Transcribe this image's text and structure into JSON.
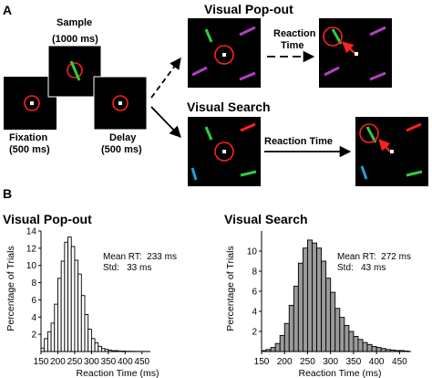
{
  "panel_a": {
    "label": "A",
    "fixation": {
      "title": "Fixation",
      "duration": "(500 ms)"
    },
    "sample": {
      "title": "Sample",
      "duration": "(1000 ms)"
    },
    "delay": {
      "title": "Delay",
      "duration": "(500 ms)"
    },
    "popout": {
      "title": "Visual Pop-out",
      "rt_line1": "Reaction",
      "rt_line2": "Time"
    },
    "search": {
      "title": "Visual Search",
      "rt_label": "Reaction Time"
    }
  },
  "panel_b": {
    "label": "B"
  },
  "colors": {
    "fixation_circle": "#ff2020",
    "target": "#2ecc40",
    "distractor_popout": "#b040c0",
    "distractor_blue": "#1ea0d8",
    "arrow": "#ff2020"
  },
  "chart_data": [
    {
      "type": "bar",
      "title": "Visual Pop-out",
      "xlabel": "Reaction Time (ms)",
      "ylabel": "Percentage of Trials",
      "xticks": [
        150,
        200,
        250,
        300,
        350,
        400,
        450
      ],
      "yticks": [
        2,
        4,
        6,
        8,
        10,
        12,
        14
      ],
      "xlim": [
        150,
        475
      ],
      "ylim": [
        0,
        14
      ],
      "bin_width": 10,
      "bin_starts": [
        150,
        160,
        170,
        180,
        190,
        200,
        210,
        220,
        230,
        240,
        250,
        260,
        270,
        280,
        290,
        300,
        310,
        320,
        330,
        340,
        350,
        360,
        370,
        380,
        390,
        400,
        410,
        420,
        430,
        440,
        450,
        460
      ],
      "values": [
        0.4,
        1.5,
        2.3,
        3.3,
        5.5,
        8.5,
        10.5,
        12.7,
        13.3,
        12.2,
        10.6,
        9.0,
        6.5,
        4.3,
        2.6,
        1.5,
        1.0,
        0.6,
        0.35,
        0.25,
        0.15,
        0.1,
        0.1,
        0.05,
        0.05,
        0.03,
        0.03,
        0.02,
        0.02,
        0.01,
        0.01,
        0.01
      ],
      "bar_color": "#ffffff",
      "stats_line1": "Mean RT:  233 ms",
      "stats_line2": "Std:   33 ms"
    },
    {
      "type": "bar",
      "title": "Visual Search",
      "xlabel": "Reaction Time (ms)",
      "ylabel": "Percentage of Trials",
      "xticks": [
        150,
        200,
        250,
        300,
        350,
        400,
        450
      ],
      "yticks": [
        2,
        4,
        6,
        8,
        10
      ],
      "xlim": [
        150,
        475
      ],
      "ylim": [
        0,
        12
      ],
      "bin_width": 10,
      "bin_starts": [
        150,
        160,
        170,
        180,
        190,
        200,
        210,
        220,
        230,
        240,
        250,
        260,
        270,
        280,
        290,
        300,
        310,
        320,
        330,
        340,
        350,
        360,
        370,
        380,
        390,
        400,
        410,
        420,
        430,
        440,
        450,
        460
      ],
      "values": [
        0.1,
        0.2,
        0.4,
        0.8,
        1.6,
        2.8,
        4.6,
        6.5,
        8.8,
        10.3,
        11.1,
        10.8,
        10.3,
        9.0,
        7.3,
        5.9,
        4.3,
        3.4,
        2.6,
        2.0,
        1.5,
        1.2,
        0.9,
        0.7,
        0.5,
        0.4,
        0.3,
        0.2,
        0.15,
        0.1,
        0.1,
        0.05
      ],
      "bar_color": "#9a9a9a",
      "stats_line1": "Mean RT:  272 ms",
      "stats_line2": "Std:   43 ms"
    }
  ]
}
